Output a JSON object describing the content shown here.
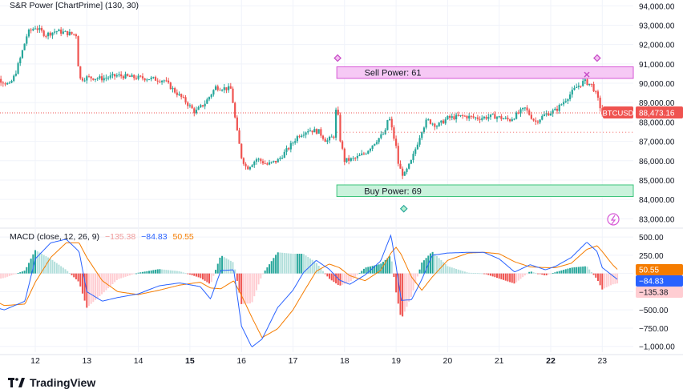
{
  "indicator": {
    "name": "S&R Power [ChartPrime] (130, 30)"
  },
  "macd": {
    "title": "MACD (close, 12, 26, 9)",
    "values": [
      "−135.38",
      "−84.83",
      "50.55"
    ],
    "colors": {
      "hist": "#ef5350",
      "macd": "#2962ff",
      "signal": "#f57c00"
    }
  },
  "brand": {
    "name": "TradingView"
  },
  "chart_data": [
    {
      "type": "candlestick",
      "symbol": "BTCUSD",
      "last_price": "88,473.16",
      "x_ticks": [
        "12",
        "13",
        "14",
        "15",
        "16",
        "17",
        "18",
        "19",
        "20",
        "21",
        "22",
        "23"
      ],
      "bold_ticks": [
        "15",
        "22"
      ],
      "y_ticks": [
        "94,000.00",
        "93,000.00",
        "92,000.00",
        "91,000.00",
        "90,000.00",
        "89,000.00",
        "88,000.00",
        "87,000.00",
        "86,000.00",
        "85,000.00",
        "84,000.00",
        "83,000.00"
      ],
      "ylim": [
        82600,
        94300
      ],
      "sell_zone": {
        "label": "Sell Power: 61",
        "low": 90250,
        "high": 90850
      },
      "buy_zone": {
        "label": "Buy Power: 69",
        "low": 84150,
        "high": 84750
      },
      "close_path": [
        [
          11.0,
          90350
        ],
        [
          11.3,
          90200
        ],
        [
          11.5,
          89900
        ],
        [
          11.6,
          90400
        ],
        [
          11.7,
          91200
        ],
        [
          11.85,
          92600
        ],
        [
          12.0,
          92900
        ],
        [
          12.2,
          92500
        ],
        [
          12.4,
          92700
        ],
        [
          12.6,
          92600
        ],
        [
          12.8,
          92500
        ],
        [
          12.85,
          90200
        ],
        [
          13.0,
          90300
        ],
        [
          13.3,
          90250
        ],
        [
          13.6,
          90400
        ],
        [
          13.9,
          90300
        ],
        [
          14.2,
          90250
        ],
        [
          14.5,
          90150
        ],
        [
          14.7,
          89600
        ],
        [
          14.9,
          89100
        ],
        [
          15.1,
          88500
        ],
        [
          15.3,
          89000
        ],
        [
          15.5,
          89800
        ],
        [
          15.8,
          89700
        ],
        [
          15.9,
          87700
        ],
        [
          16.0,
          86200
        ],
        [
          16.1,
          85600
        ],
        [
          16.3,
          86100
        ],
        [
          16.5,
          85800
        ],
        [
          16.7,
          86000
        ],
        [
          16.9,
          86600
        ],
        [
          17.1,
          87300
        ],
        [
          17.3,
          87600
        ],
        [
          17.5,
          87500
        ],
        [
          17.65,
          87000
        ],
        [
          17.8,
          87300
        ],
        [
          17.85,
          89200
        ],
        [
          17.9,
          87300
        ],
        [
          18.0,
          86000
        ],
        [
          18.2,
          86100
        ],
        [
          18.4,
          86400
        ],
        [
          18.6,
          87000
        ],
        [
          18.8,
          87500
        ],
        [
          18.85,
          88400
        ],
        [
          19.0,
          86700
        ],
        [
          19.05,
          85700
        ],
        [
          19.15,
          85200
        ],
        [
          19.3,
          86000
        ],
        [
          19.5,
          87600
        ],
        [
          19.6,
          88100
        ],
        [
          19.8,
          87800
        ],
        [
          20.0,
          88200
        ],
        [
          20.3,
          88300
        ],
        [
          20.6,
          88200
        ],
        [
          20.9,
          88300
        ],
        [
          21.2,
          88100
        ],
        [
          21.5,
          88700
        ],
        [
          21.7,
          88000
        ],
        [
          21.9,
          88400
        ],
        [
          22.1,
          88600
        ],
        [
          22.3,
          89200
        ],
        [
          22.5,
          89800
        ],
        [
          22.65,
          90100
        ],
        [
          22.8,
          89900
        ],
        [
          22.9,
          89300
        ],
        [
          23.0,
          88400
        ],
        [
          23.2,
          88500
        ],
        [
          23.3,
          88473
        ]
      ]
    },
    {
      "type": "macd",
      "y_ticks": [
        "500.00",
        "250.00",
        "0.00",
        "−250.00",
        "−500.00",
        "−750.00",
        "−1,000.00"
      ],
      "ylim": [
        -1080,
        600
      ],
      "last_values": {
        "histogram": -135.38,
        "macd": -84.83,
        "signal": 50.55
      },
      "macd_line": [
        [
          11.0,
          -420
        ],
        [
          11.4,
          -500
        ],
        [
          11.8,
          -380
        ],
        [
          12.0,
          200
        ],
        [
          12.3,
          420
        ],
        [
          12.6,
          470
        ],
        [
          12.85,
          300
        ],
        [
          13.0,
          -250
        ],
        [
          13.3,
          -380
        ],
        [
          13.6,
          -330
        ],
        [
          14.0,
          -280
        ],
        [
          14.4,
          -170
        ],
        [
          14.8,
          -130
        ],
        [
          15.2,
          -180
        ],
        [
          15.4,
          -350
        ],
        [
          15.6,
          40
        ],
        [
          15.85,
          50
        ],
        [
          16.0,
          -720
        ],
        [
          16.2,
          -1010
        ],
        [
          16.4,
          -900
        ],
        [
          16.7,
          -470
        ],
        [
          17.0,
          -230
        ],
        [
          17.2,
          10
        ],
        [
          17.45,
          180
        ],
        [
          17.7,
          60
        ],
        [
          17.9,
          -90
        ],
        [
          18.1,
          -150
        ],
        [
          18.4,
          -20
        ],
        [
          18.7,
          170
        ],
        [
          18.9,
          530
        ],
        [
          19.0,
          100
        ],
        [
          19.1,
          -370
        ],
        [
          19.3,
          -360
        ],
        [
          19.5,
          -80
        ],
        [
          19.7,
          250
        ],
        [
          20.0,
          280
        ],
        [
          20.4,
          290
        ],
        [
          20.7,
          290
        ],
        [
          21.0,
          200
        ],
        [
          21.3,
          20
        ],
        [
          21.6,
          120
        ],
        [
          21.9,
          50
        ],
        [
          22.1,
          100
        ],
        [
          22.4,
          220
        ],
        [
          22.7,
          430
        ],
        [
          22.9,
          300
        ],
        [
          23.0,
          80
        ],
        [
          23.2,
          -30
        ],
        [
          23.3,
          -85
        ]
      ],
      "signal_line": [
        [
          11.0,
          -300
        ],
        [
          11.4,
          -440
        ],
        [
          11.8,
          -420
        ],
        [
          12.0,
          -120
        ],
        [
          12.3,
          220
        ],
        [
          12.6,
          420
        ],
        [
          12.85,
          420
        ],
        [
          13.0,
          220
        ],
        [
          13.3,
          -100
        ],
        [
          13.6,
          -250
        ],
        [
          14.0,
          -290
        ],
        [
          14.4,
          -230
        ],
        [
          14.8,
          -160
        ],
        [
          15.2,
          -120
        ],
        [
          15.4,
          -200
        ],
        [
          15.6,
          -210
        ],
        [
          15.85,
          -100
        ],
        [
          16.0,
          -300
        ],
        [
          16.2,
          -600
        ],
        [
          16.4,
          -880
        ],
        [
          16.7,
          -760
        ],
        [
          17.0,
          -500
        ],
        [
          17.2,
          -260
        ],
        [
          17.45,
          30
        ],
        [
          17.7,
          130
        ],
        [
          17.9,
          80
        ],
        [
          18.1,
          -30
        ],
        [
          18.4,
          -100
        ],
        [
          18.7,
          40
        ],
        [
          18.9,
          280
        ],
        [
          19.0,
          360
        ],
        [
          19.1,
          260
        ],
        [
          19.3,
          -50
        ],
        [
          19.5,
          -230
        ],
        [
          19.7,
          -50
        ],
        [
          20.0,
          180
        ],
        [
          20.4,
          280
        ],
        [
          20.7,
          290
        ],
        [
          21.0,
          270
        ],
        [
          21.3,
          160
        ],
        [
          21.6,
          90
        ],
        [
          21.9,
          80
        ],
        [
          22.1,
          80
        ],
        [
          22.4,
          140
        ],
        [
          22.7,
          330
        ],
        [
          22.9,
          380
        ],
        [
          23.0,
          300
        ],
        [
          23.2,
          120
        ],
        [
          23.3,
          51
        ]
      ]
    }
  ]
}
